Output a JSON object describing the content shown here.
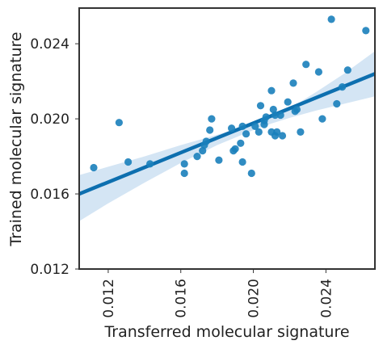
{
  "chart_data": {
    "type": "scatter",
    "xlabel": "Transferred molecular signature",
    "ylabel": "Trained molecular signature",
    "xlim": [
      0.0104,
      0.0267
    ],
    "ylim": [
      0.012,
      0.0259
    ],
    "xticks": [
      "0.012",
      "0.016",
      "0.020",
      "0.024"
    ],
    "yticks": [
      "0.012",
      "0.016",
      "0.020",
      "0.024"
    ],
    "grid": false,
    "colors": {
      "points": "#1a80bb",
      "fit_line": "#0d6faf",
      "ci_band": "#c6dcf0",
      "frame": "#333333"
    },
    "points": [
      [
        0.0112,
        0.0174
      ],
      [
        0.0126,
        0.0198
      ],
      [
        0.0131,
        0.0177
      ],
      [
        0.0143,
        0.0176
      ],
      [
        0.0162,
        0.0176
      ],
      [
        0.0162,
        0.0171
      ],
      [
        0.0169,
        0.018
      ],
      [
        0.0172,
        0.0183
      ],
      [
        0.0173,
        0.0186
      ],
      [
        0.0174,
        0.0188
      ],
      [
        0.0176,
        0.0194
      ],
      [
        0.0177,
        0.02
      ],
      [
        0.0181,
        0.0178
      ],
      [
        0.0188,
        0.0195
      ],
      [
        0.0189,
        0.0183
      ],
      [
        0.019,
        0.0184
      ],
      [
        0.0193,
        0.0187
      ],
      [
        0.0194,
        0.0177
      ],
      [
        0.0194,
        0.0196
      ],
      [
        0.0196,
        0.0192
      ],
      [
        0.0199,
        0.0171
      ],
      [
        0.0201,
        0.0196
      ],
      [
        0.0203,
        0.0193
      ],
      [
        0.0204,
        0.0207
      ],
      [
        0.0206,
        0.0197
      ],
      [
        0.0206,
        0.0199
      ],
      [
        0.0207,
        0.0201
      ],
      [
        0.021,
        0.0193
      ],
      [
        0.021,
        0.0215
      ],
      [
        0.0211,
        0.0205
      ],
      [
        0.0212,
        0.0191
      ],
      [
        0.0212,
        0.0202
      ],
      [
        0.0213,
        0.0193
      ],
      [
        0.0215,
        0.0202
      ],
      [
        0.0216,
        0.0191
      ],
      [
        0.0219,
        0.0209
      ],
      [
        0.0222,
        0.0219
      ],
      [
        0.0223,
        0.0204
      ],
      [
        0.0224,
        0.0205
      ],
      [
        0.0226,
        0.0193
      ],
      [
        0.0229,
        0.0229
      ],
      [
        0.0236,
        0.0225
      ],
      [
        0.0238,
        0.02
      ],
      [
        0.0243,
        0.0253
      ],
      [
        0.0246,
        0.0208
      ],
      [
        0.0249,
        0.0217
      ],
      [
        0.0252,
        0.0226
      ],
      [
        0.0262,
        0.0247
      ]
    ],
    "fit": {
      "x": [
        0.0104,
        0.0267
      ],
      "y": [
        0.016,
        0.0224
      ]
    },
    "ci_band": {
      "x": [
        0.0104,
        0.012,
        0.014,
        0.016,
        0.018,
        0.02,
        0.021,
        0.022,
        0.0235,
        0.025,
        0.0267
      ],
      "lower": [
        0.01455,
        0.0155,
        0.0166,
        0.01765,
        0.0186,
        0.0194,
        0.01975,
        0.02005,
        0.02045,
        0.0208,
        0.0212
      ],
      "upper": [
        0.017,
        0.01745,
        0.018,
        0.0186,
        0.01915,
        0.01975,
        0.0201,
        0.02055,
        0.02145,
        0.0224,
        0.0236
      ]
    }
  }
}
